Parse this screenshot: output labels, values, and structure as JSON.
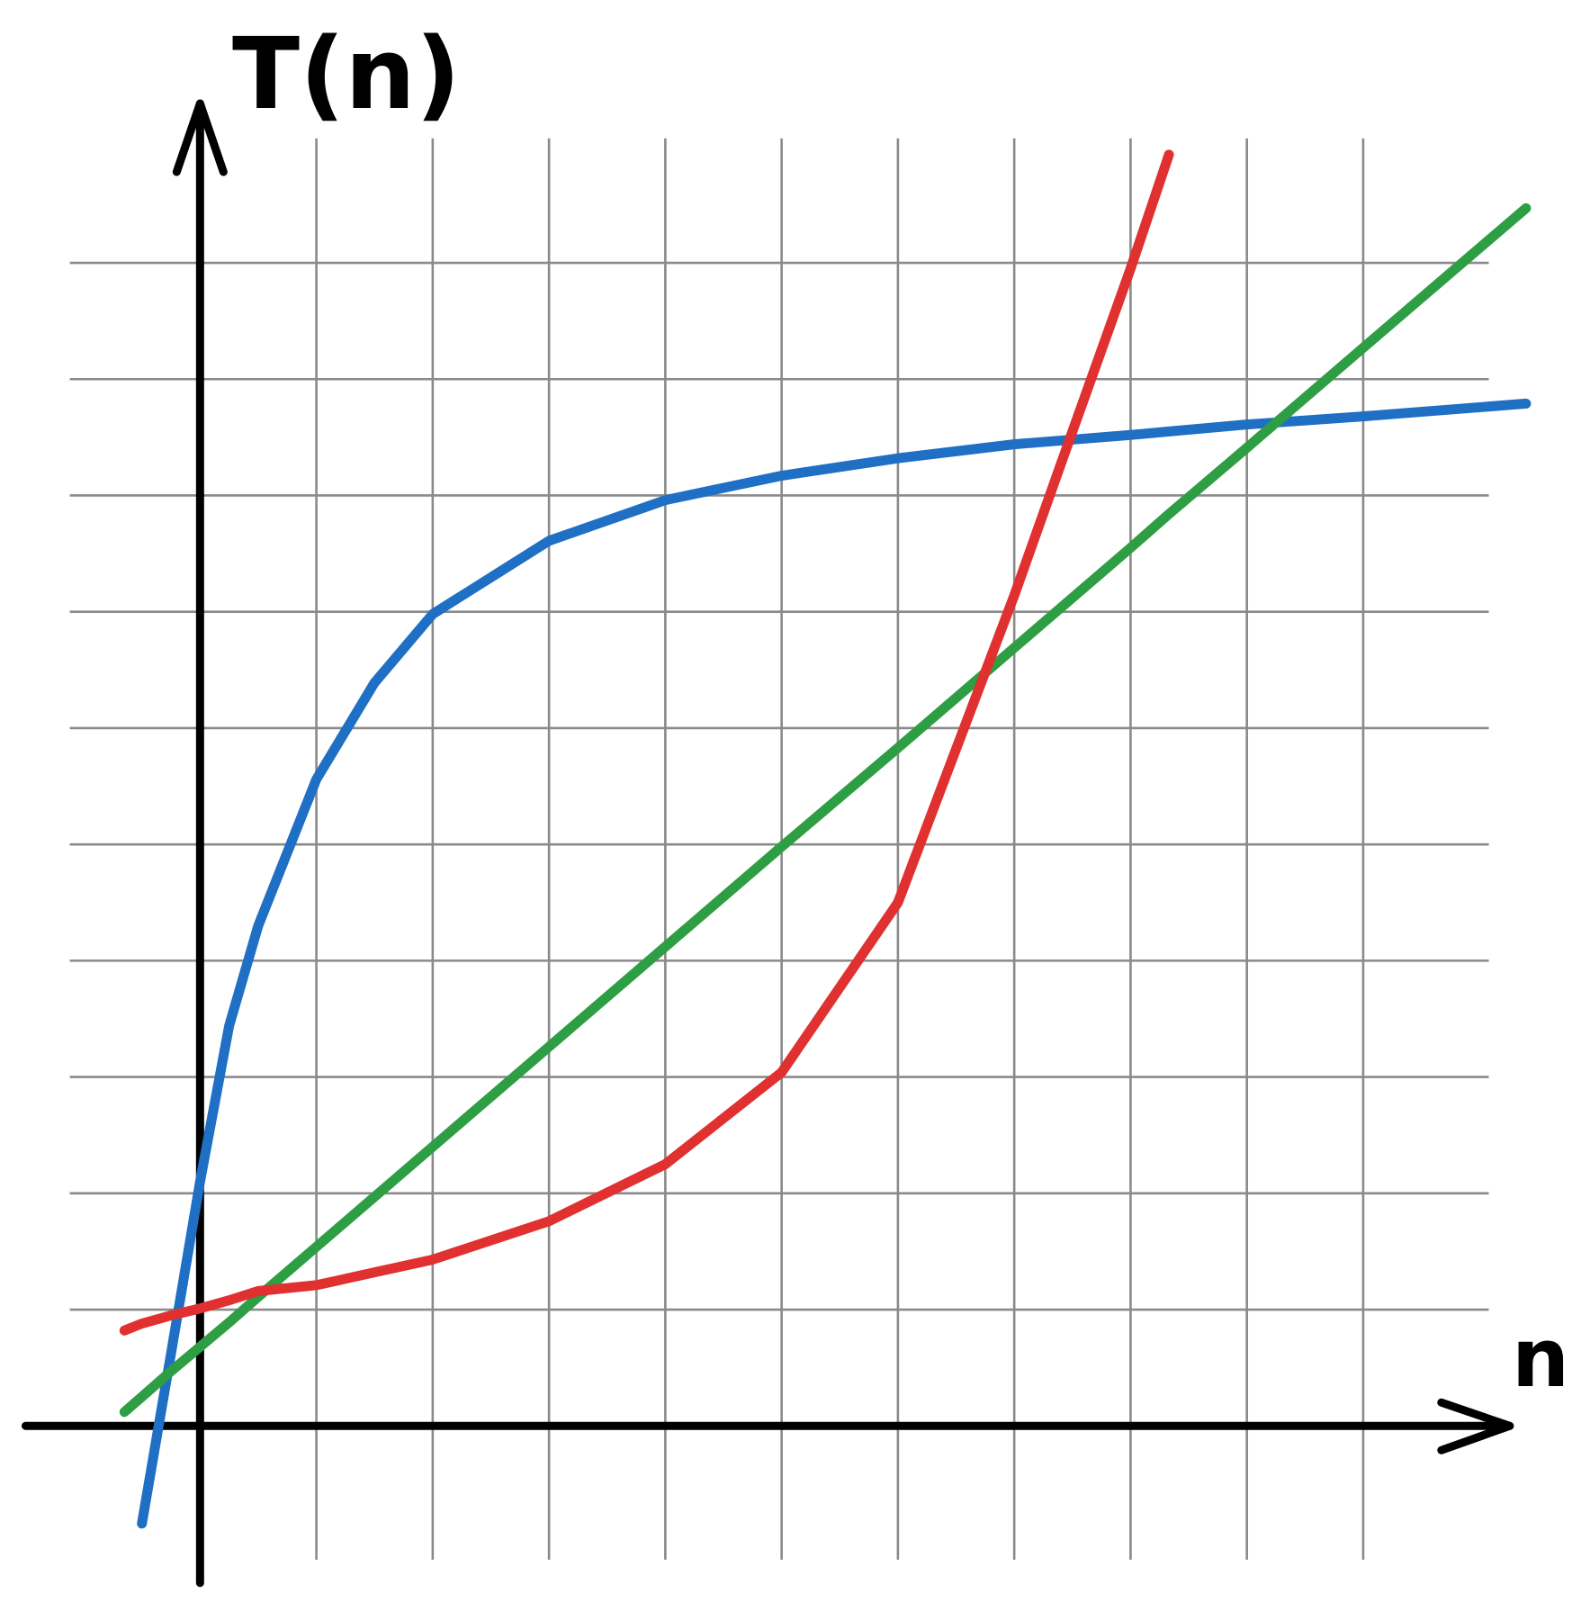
{
  "chart_data": {
    "type": "line",
    "xlabel": "n",
    "ylabel": "T(n)",
    "x": [
      -0.65,
      -0.5,
      -0.25,
      0,
      0.25,
      0.5,
      1,
      1.5,
      2,
      3,
      4,
      5,
      6,
      7,
      7.5,
      8,
      8.33,
      9,
      10,
      11.4
    ],
    "series": [
      {
        "color": "#1f6fc4",
        "values": [
          null,
          -0.84,
          0.62,
          2.1,
          3.44,
          4.3,
          5.56,
          6.39,
          6.98,
          7.61,
          7.96,
          8.17,
          8.32,
          8.44,
          8.48,
          8.52,
          8.55,
          8.61,
          8.68,
          8.79
        ]
      },
      {
        "color": "#2e9e44",
        "values": [
          0.12,
          0.25,
          0.47,
          0.68,
          0.89,
          1.11,
          1.54,
          1.97,
          2.4,
          3.26,
          4.12,
          4.98,
          5.83,
          6.69,
          7.12,
          7.55,
          7.84,
          8.41,
          9.27,
          10.47
        ]
      },
      {
        "color": "#e03030",
        "values": [
          0.82,
          0.88,
          0.95,
          1.01,
          1.08,
          1.16,
          1.21,
          1.32,
          1.43,
          1.76,
          2.25,
          3.04,
          4.5,
          7.14,
          8.55,
          9.95,
          10.93,
          null,
          null,
          null
        ]
      }
    ],
    "xlim": [
      -1.72,
      11.95
    ],
    "ylim": [
      -1.6,
      12.26
    ],
    "xticks": [
      1,
      2,
      3,
      4,
      5,
      6,
      7,
      8,
      9,
      10
    ],
    "yticks": [
      1,
      2,
      3,
      4,
      5,
      6,
      7,
      8,
      9,
      10
    ],
    "grid": true
  }
}
